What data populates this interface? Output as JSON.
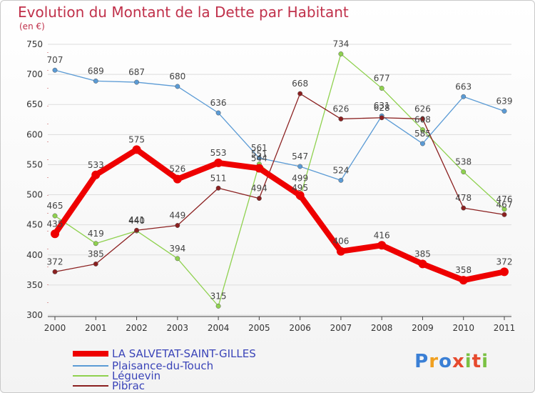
{
  "header": {
    "title": "Evolution du Montant de la Dette par Habitant",
    "subtitle": "(en €)"
  },
  "logo": {
    "letters": [
      "P",
      "r",
      "o",
      "x",
      "i",
      "t",
      "i"
    ],
    "colors": [
      "#3a7fd5",
      "#f0a020",
      "#3a7fd5",
      "#e64a2e",
      "#7ac143",
      "#e64a2e",
      "#7ac143"
    ]
  },
  "chart_data": {
    "type": "line",
    "categories": [
      "2000",
      "2001",
      "2002",
      "2003",
      "2004",
      "2005",
      "2006",
      "2007",
      "2008",
      "2009",
      "2010",
      "2011"
    ],
    "ylim": [
      300,
      750
    ],
    "yticks": [
      300,
      350,
      400,
      450,
      500,
      550,
      600,
      650,
      700,
      750
    ],
    "grid": true,
    "legend_position": "bottom-left",
    "series": [
      {
        "name": "LA SALVETAT-SAINT-GILLES",
        "color": "#ee0000",
        "values": [
          435,
          533,
          575,
          526,
          553,
          544,
          499,
          406,
          416,
          385,
          358,
          372
        ],
        "labels": [
          "435",
          "533",
          "575",
          "526",
          "553",
          "",
          "",
          "406",
          "416",
          "385",
          "358",
          "372"
        ]
      },
      {
        "name": "Plaisance-du-Touch",
        "color": "#5b9bd5",
        "values": [
          707,
          689,
          687,
          680,
          636,
          561,
          547,
          524,
          631,
          585,
          663,
          639
        ],
        "labels": [
          "707",
          "689",
          "687",
          "680",
          "636",
          "561",
          "547",
          "524",
          "631",
          "585",
          "663",
          "639"
        ]
      },
      {
        "name": "Léguevin",
        "color": "#8fd14f",
        "values": [
          465,
          419,
          440,
          394,
          315,
          551,
          495,
          734,
          677,
          608,
          538,
          476
        ],
        "labels": [
          "465",
          "419",
          "440",
          "394",
          "315",
          "551",
          "495",
          "734",
          "677",
          "",
          "538",
          "476"
        ]
      },
      {
        "name": "Pibrac",
        "color": "#8b2020",
        "values": [
          372,
          385,
          441,
          449,
          511,
          494,
          668,
          626,
          628,
          626,
          478,
          467
        ],
        "labels": [
          "372",
          "385",
          "441",
          "449",
          "511",
          "494",
          "668",
          "626",
          "628",
          "626",
          "478",
          "467"
        ]
      }
    ],
    "extra_labels": [
      "544",
      "499",
      "608"
    ]
  }
}
